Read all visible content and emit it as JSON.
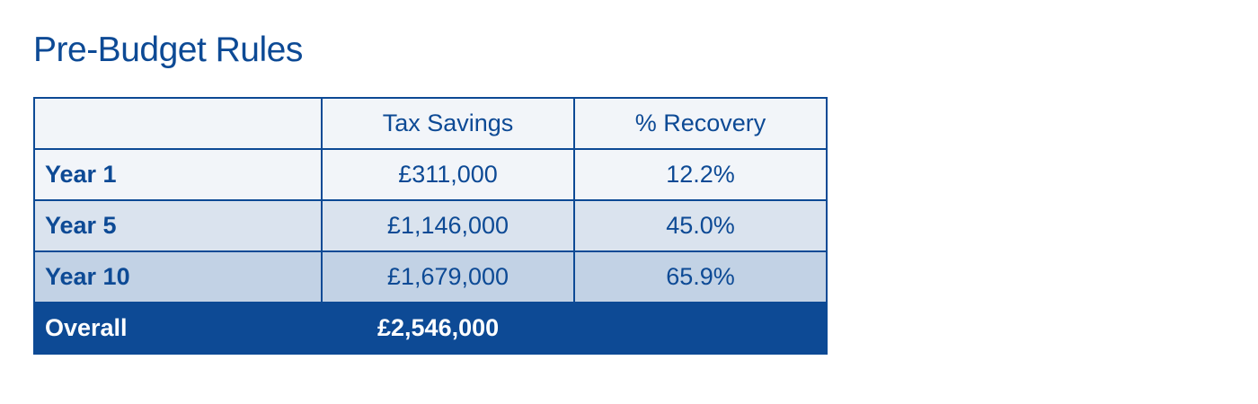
{
  "title": "Pre-Budget Rules",
  "table": {
    "headers": [
      "",
      "Tax Savings",
      "% Recovery"
    ],
    "rows": [
      {
        "label": "Year 1",
        "tax_savings": "£311,000",
        "recovery": "12.2%"
      },
      {
        "label": "Year 5",
        "tax_savings": "£1,146,000",
        "recovery": "45.0%"
      },
      {
        "label": "Year 10",
        "tax_savings": "£1,679,000",
        "recovery": "65.9%"
      }
    ],
    "total": {
      "label": "Overall",
      "tax_savings": "£2,546,000",
      "recovery": ""
    }
  },
  "colors": {
    "brand_blue": "#0d4a95",
    "row_1": "#f2f5f9",
    "row_2": "#dae3ee",
    "row_3": "#c2d2e5"
  }
}
